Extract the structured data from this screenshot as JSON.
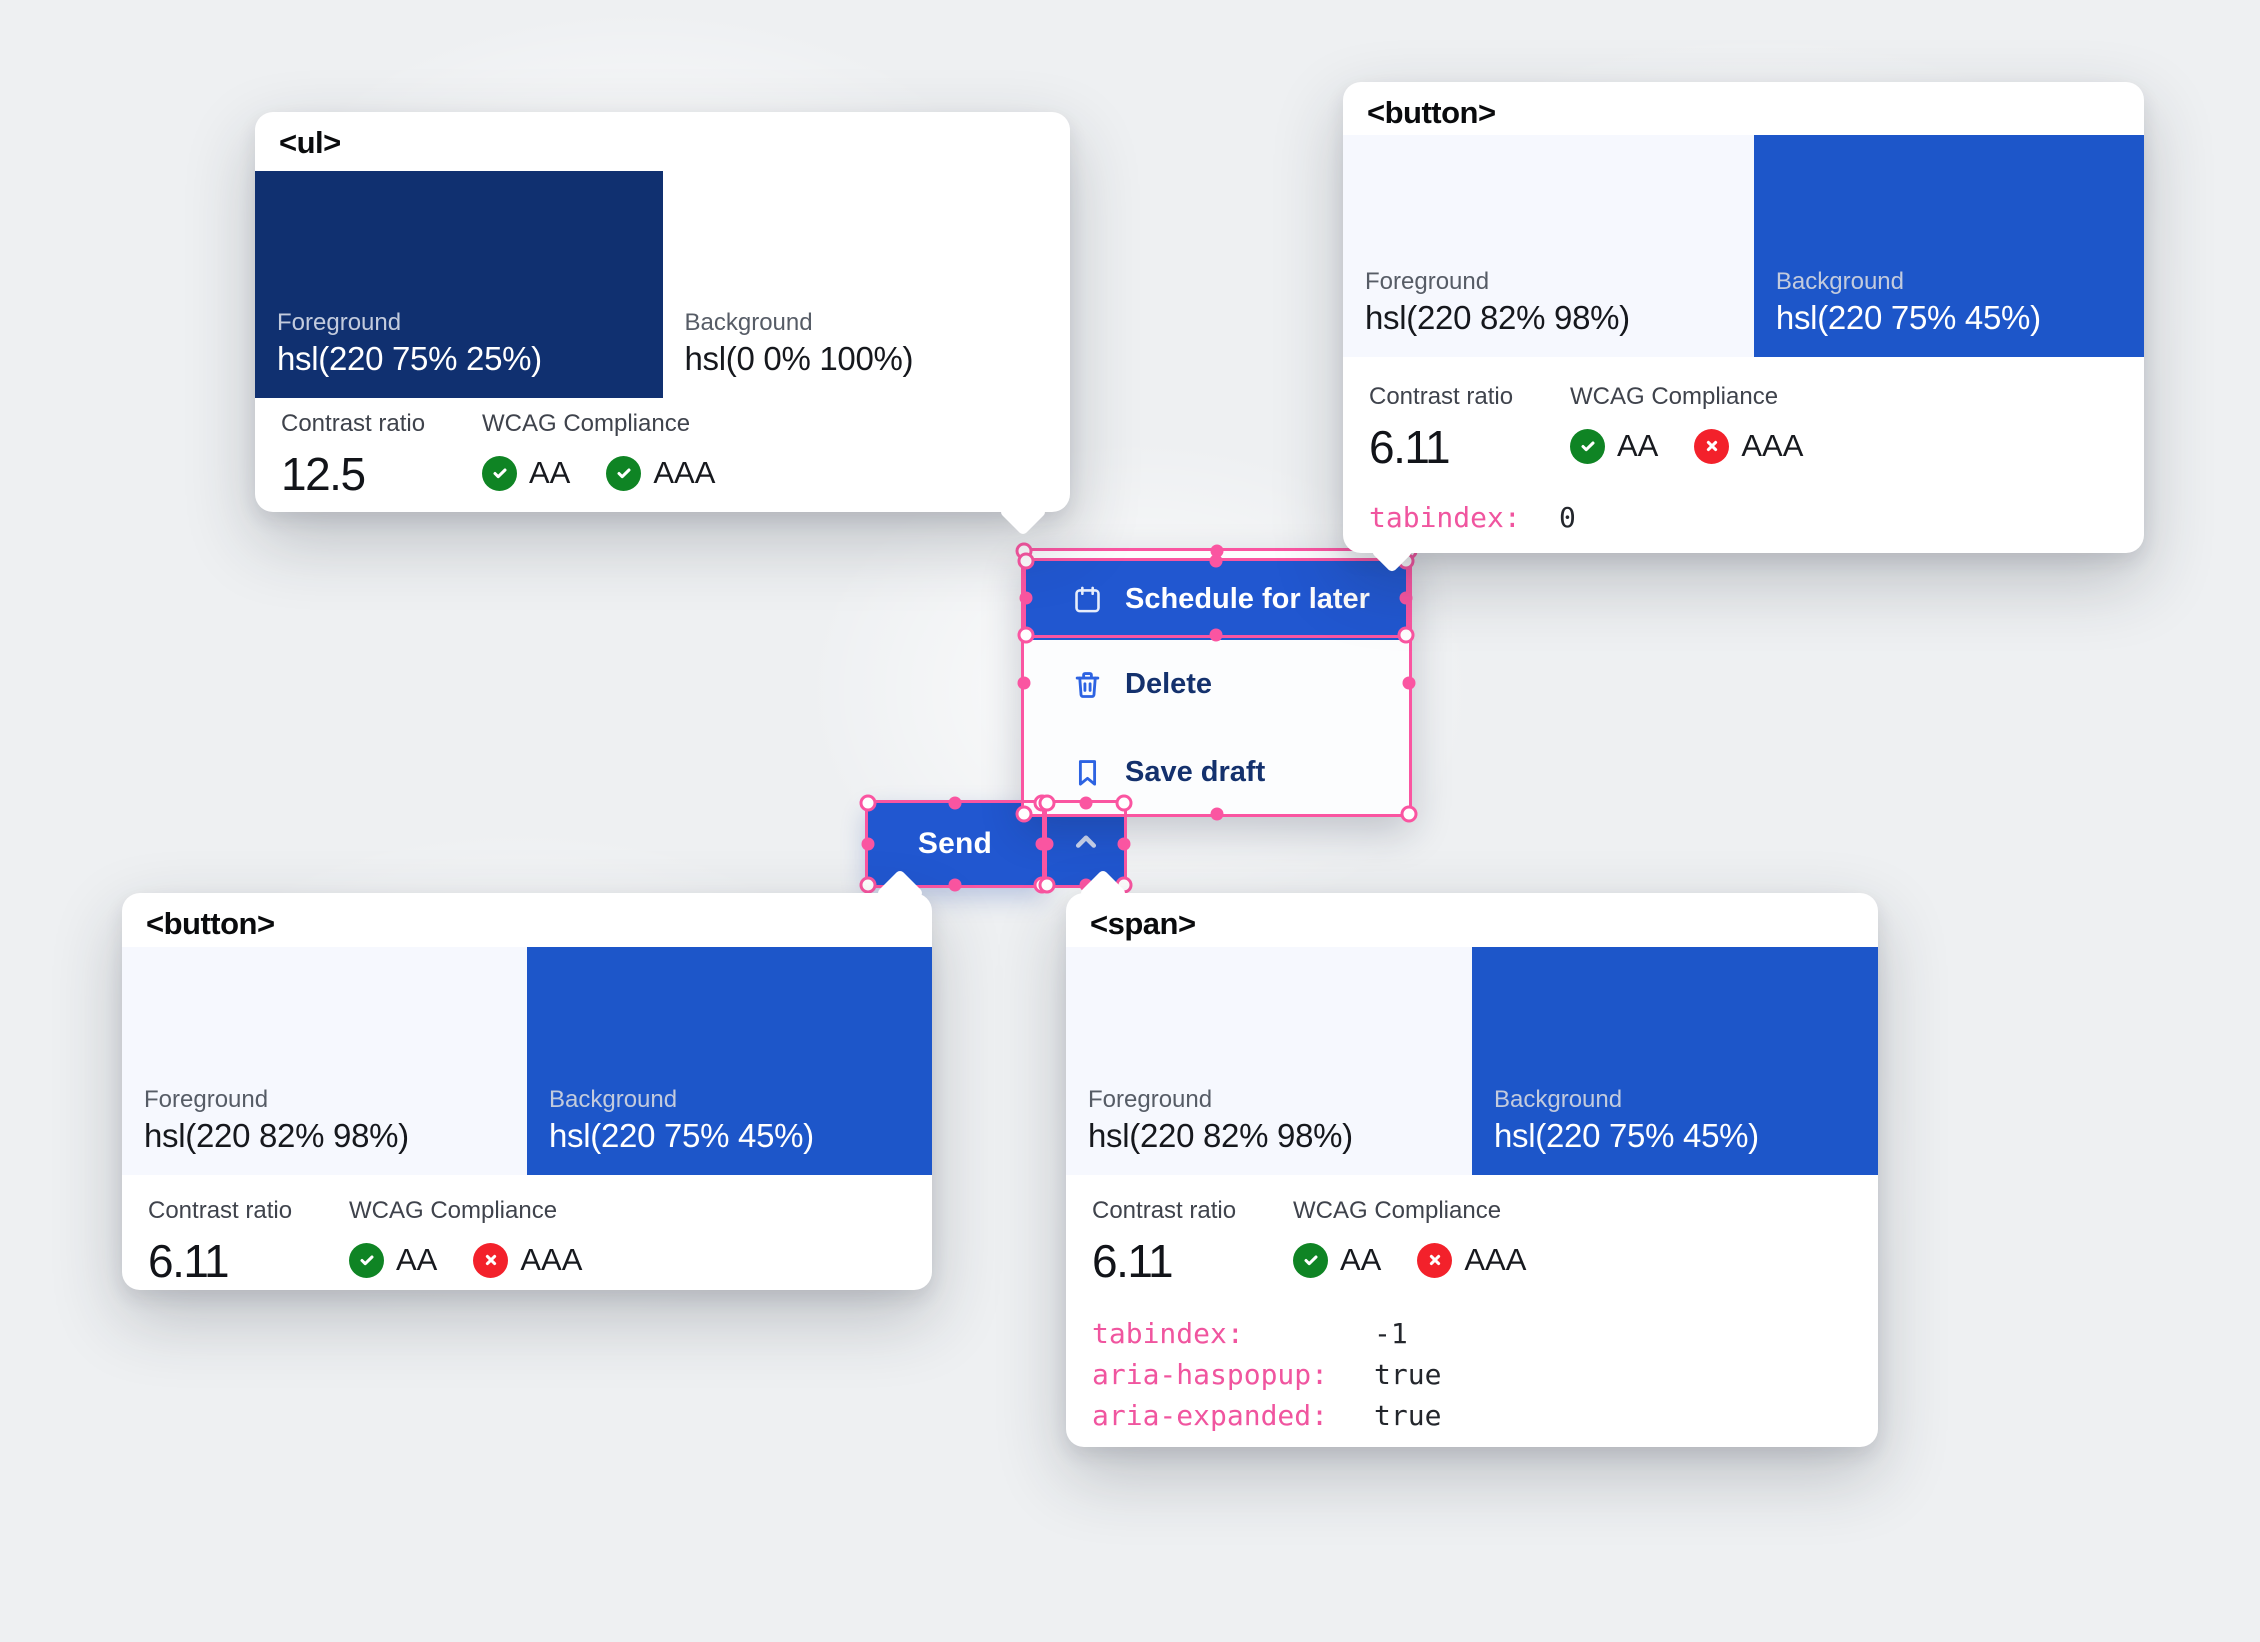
{
  "cards": [
    {
      "tag": "<ul>",
      "foreground": {
        "label": "Foreground",
        "value": "hsl(220 75% 25%)",
        "color": "#103070"
      },
      "background": {
        "label": "Background",
        "value": "hsl(0 0% 100%)",
        "color": "#ffffff"
      },
      "contrast_label": "Contrast ratio",
      "contrast_value": "12.5",
      "wcag_label": "WCAG Compliance",
      "aa": {
        "label": "AA",
        "pass": true
      },
      "aaa": {
        "label": "AAA",
        "pass": true
      },
      "attributes": []
    },
    {
      "tag": "<button>",
      "foreground": {
        "label": "Foreground",
        "value": "hsl(220 82% 98%)",
        "color": "#f6f8fe"
      },
      "background": {
        "label": "Background",
        "value": "hsl(220 75% 45%)",
        "color": "#1d56c9"
      },
      "contrast_label": "Contrast ratio",
      "contrast_value": "6.11",
      "wcag_label": "WCAG Compliance",
      "aa": {
        "label": "AA",
        "pass": true
      },
      "aaa": {
        "label": "AAA",
        "pass": false
      },
      "attributes": [
        {
          "name": "tabindex:",
          "value": "0"
        }
      ]
    },
    {
      "tag": "<button>",
      "foreground": {
        "label": "Foreground",
        "value": "hsl(220 82% 98%)",
        "color": "#f6f8fe"
      },
      "background": {
        "label": "Background",
        "value": "hsl(220 75% 45%)",
        "color": "#1d56c9"
      },
      "contrast_label": "Contrast ratio",
      "contrast_value": "6.11",
      "wcag_label": "WCAG Compliance",
      "aa": {
        "label": "AA",
        "pass": true
      },
      "aaa": {
        "label": "AAA",
        "pass": false
      },
      "attributes": []
    },
    {
      "tag": "<span>",
      "foreground": {
        "label": "Foreground",
        "value": "hsl(220 82% 98%)",
        "color": "#f6f8fe"
      },
      "background": {
        "label": "Background",
        "value": "hsl(220 75% 45%)",
        "color": "#1d56c9"
      },
      "contrast_label": "Contrast ratio",
      "contrast_value": "6.11",
      "wcag_label": "WCAG Compliance",
      "aa": {
        "label": "AA",
        "pass": true
      },
      "aaa": {
        "label": "AAA",
        "pass": false
      },
      "attributes": [
        {
          "name": "tabindex:",
          "value": "-1"
        },
        {
          "name": "aria-haspopup:",
          "value": "true"
        },
        {
          "name": "aria-expanded:",
          "value": "true"
        }
      ]
    }
  ],
  "menu": {
    "items": [
      {
        "label": "Schedule for later",
        "icon": "calendar-icon",
        "active": true
      },
      {
        "label": "Delete",
        "icon": "trash-icon",
        "active": false
      },
      {
        "label": "Save draft",
        "icon": "bookmark-icon",
        "active": false
      }
    ]
  },
  "send_button": {
    "label": "Send"
  },
  "colors": {
    "accent_blue": "#2157d0",
    "selection_pink": "#fa55a1",
    "pass_green": "#0f8424",
    "fail_red": "#f3212b",
    "attr_pink": "#f0559f",
    "dark_navy_swatch": "#103070",
    "light_swatch": "#f6f8fe",
    "blue_swatch": "#1d56c9"
  }
}
